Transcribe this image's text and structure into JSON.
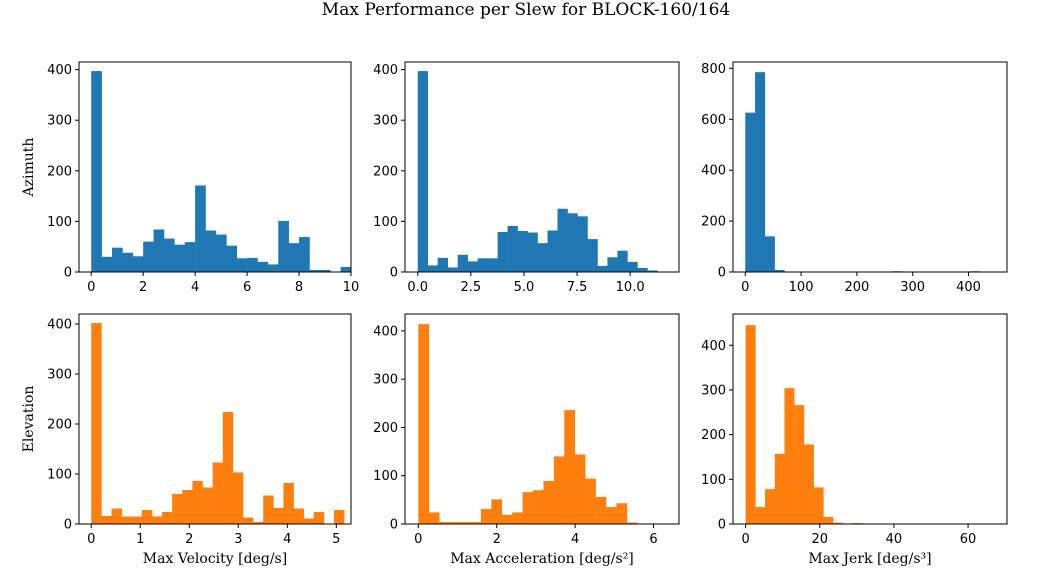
{
  "title": "Max Performance per Slew for BLOCK-160/164",
  "colors": {
    "azimuth": "#1f77b4",
    "elevation": "#ff7f0e",
    "axes": "#000000"
  },
  "chart_data": [
    {
      "type": "bar",
      "row_label": "Azimuth",
      "xlabel": "",
      "color": "#1f77b4",
      "xlim": [
        -0.47,
        10.0
      ],
      "ylim": [
        0,
        415
      ],
      "xticks": [
        0,
        2,
        4,
        6,
        8,
        10
      ],
      "xtick_labels": [
        "0",
        "2",
        "4",
        "6",
        "8",
        "10"
      ],
      "yticks": [
        0,
        100,
        200,
        300,
        400
      ],
      "ytick_labels": [
        "0",
        "100",
        "200",
        "300",
        "400"
      ],
      "bin_start": 0.0,
      "bin_width": 0.4,
      "values": [
        397,
        30,
        48,
        38,
        31,
        60,
        84,
        66,
        54,
        59,
        171,
        82,
        74,
        52,
        27,
        28,
        20,
        15,
        101,
        57,
        69,
        4,
        4,
        0,
        10
      ]
    },
    {
      "type": "bar",
      "row_label": "",
      "xlabel": "",
      "color": "#1f77b4",
      "xlim": [
        -0.6,
        12.3
      ],
      "ylim": [
        0,
        415
      ],
      "xticks": [
        0,
        2.5,
        5,
        7.5,
        10
      ],
      "xtick_labels": [
        "0.0",
        "2.5",
        "5.0",
        "7.5",
        "10.0"
      ],
      "yticks": [
        0,
        100,
        200,
        300,
        400
      ],
      "ytick_labels": [
        "0",
        "100",
        "200",
        "300",
        "400"
      ],
      "bin_start": 0.0,
      "bin_width": 0.47,
      "values": [
        397,
        13,
        28,
        9,
        34,
        21,
        27,
        27,
        79,
        91,
        81,
        78,
        57,
        82,
        125,
        116,
        110,
        65,
        12,
        29,
        42,
        20,
        8,
        3,
        0
      ]
    },
    {
      "type": "bar",
      "row_label": "",
      "xlabel": "",
      "color": "#1f77b4",
      "xlim": [
        -22,
        469
      ],
      "ylim": [
        0,
        825
      ],
      "xticks": [
        0,
        100,
        200,
        300,
        400
      ],
      "xtick_labels": [
        "0",
        "100",
        "200",
        "300",
        "400"
      ],
      "yticks": [
        0,
        200,
        400,
        600,
        800
      ],
      "ytick_labels": [
        "0",
        "200",
        "400",
        "600",
        "800"
      ],
      "bin_start": 0.0,
      "bin_width": 17.5,
      "values": [
        626,
        785,
        140,
        8,
        0,
        0,
        0,
        0,
        0,
        0,
        0,
        0,
        0,
        0,
        0,
        3,
        0,
        0,
        0,
        0,
        0,
        0,
        0,
        3,
        0
      ]
    },
    {
      "type": "bar",
      "row_label": "Elevation",
      "xlabel": "Max Velocity [deg/s]",
      "color": "#ff7f0e",
      "xlim": [
        -0.25,
        5.3
      ],
      "ylim": [
        0,
        420
      ],
      "xticks": [
        0,
        1,
        2,
        3,
        4,
        5
      ],
      "xtick_labels": [
        "0",
        "1",
        "2",
        "3",
        "4",
        "5"
      ],
      "yticks": [
        0,
        100,
        200,
        300,
        400
      ],
      "ytick_labels": [
        "0",
        "100",
        "200",
        "300",
        "400"
      ],
      "bin_start": 0.0,
      "bin_width": 0.2064,
      "values": [
        402,
        16,
        31,
        15,
        15,
        28,
        15,
        24,
        60,
        68,
        86,
        73,
        123,
        224,
        103,
        13,
        4,
        57,
        32,
        82,
        31,
        11,
        24,
        0,
        28
      ]
    },
    {
      "type": "bar",
      "row_label": "",
      "xlabel": "Max Acceleration [deg/s²]",
      "color": "#ff7f0e",
      "xlim": [
        -0.34,
        6.65
      ],
      "ylim": [
        0,
        435
      ],
      "xticks": [
        0,
        2,
        4,
        6
      ],
      "xtick_labels": [
        "0",
        "2",
        "4",
        "6"
      ],
      "yticks": [
        0,
        100,
        200,
        300,
        400
      ],
      "ytick_labels": [
        "0",
        "100",
        "200",
        "300",
        "400"
      ],
      "bin_start": 0.0,
      "bin_width": 0.266,
      "values": [
        414,
        24,
        4,
        4,
        4,
        4,
        31,
        51,
        19,
        24,
        66,
        70,
        89,
        140,
        236,
        144,
        94,
        56,
        35,
        43,
        3,
        0,
        0,
        0,
        1
      ]
    },
    {
      "type": "bar",
      "row_label": "",
      "xlabel": "Max Jerk [deg/s³]",
      "color": "#ff7f0e",
      "xlim": [
        -3.4,
        70.5
      ],
      "ylim": [
        0,
        470
      ],
      "xticks": [
        0,
        20,
        40,
        60
      ],
      "xtick_labels": [
        "0",
        "20",
        "40",
        "60"
      ],
      "yticks": [
        0,
        100,
        200,
        300,
        400
      ],
      "ytick_labels": [
        "0",
        "100",
        "200",
        "300",
        "400"
      ],
      "bin_start": 0.0,
      "bin_width": 2.62,
      "values": [
        445,
        38,
        78,
        157,
        304,
        266,
        178,
        82,
        16,
        3,
        0,
        2,
        0,
        0,
        0,
        0,
        0,
        0,
        0,
        0,
        0,
        0,
        0,
        0,
        1
      ]
    }
  ]
}
